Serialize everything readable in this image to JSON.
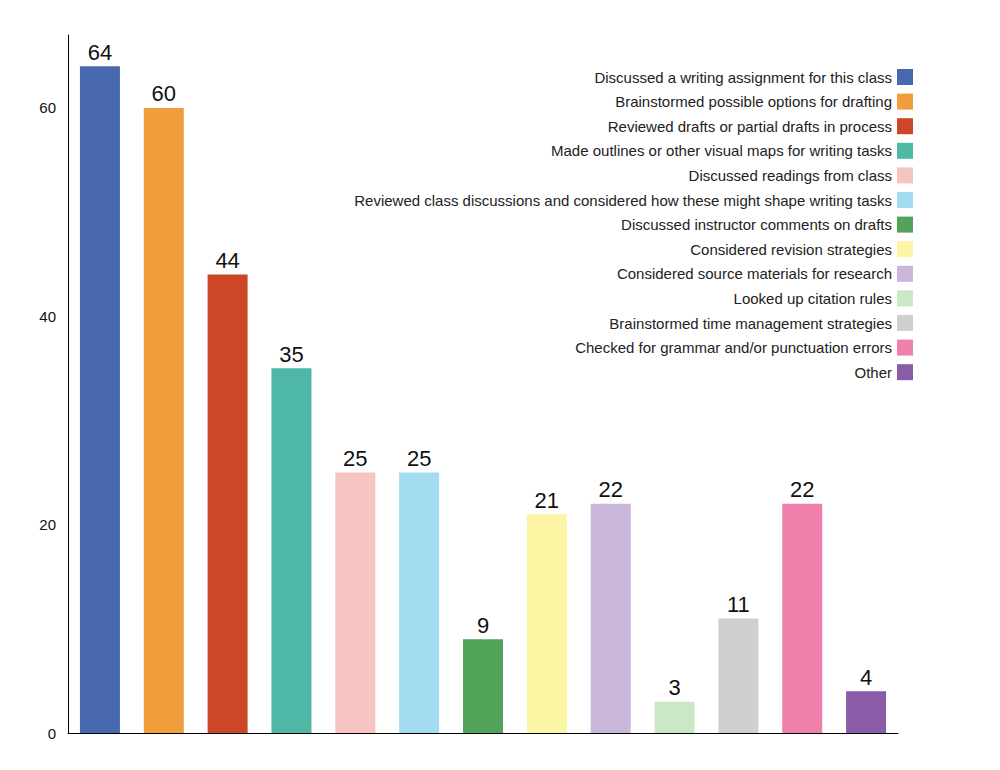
{
  "chart_data": {
    "type": "bar",
    "categories": [
      "Discussed a writing assignment for this class",
      "Brainstormed possible options for drafting",
      "Reviewed drafts or partial drafts in process",
      "Made outlines or other visual maps for writing tasks",
      "Discussed readings from class",
      "Reviewed class discussions and considered how these might shape writing tasks",
      "Discussed instructor comments on drafts",
      "Considered revision strategies",
      "Considered source materials for research",
      "Looked up citation rules",
      "Brainstormed time management strategies",
      "Checked for grammar and/or punctuation errors",
      "Other"
    ],
    "values": [
      64,
      60,
      44,
      35,
      25,
      25,
      9,
      21,
      22,
      3,
      11,
      22,
      4
    ],
    "colors": [
      "#4868b0",
      "#f29d3b",
      "#cc4628",
      "#4fb7a5",
      "#f6c5c1",
      "#a3dcf0",
      "#52a35a",
      "#fbf5a4",
      "#cab6da",
      "#cce7c4",
      "#cfcfcf",
      "#f080ab",
      "#8a5ca8"
    ],
    "ylim": [
      0,
      67
    ],
    "yticks": [
      0,
      20,
      40,
      60
    ],
    "grid": false,
    "legend": "top-right",
    "data_labels": true,
    "tick_labels": "y"
  }
}
